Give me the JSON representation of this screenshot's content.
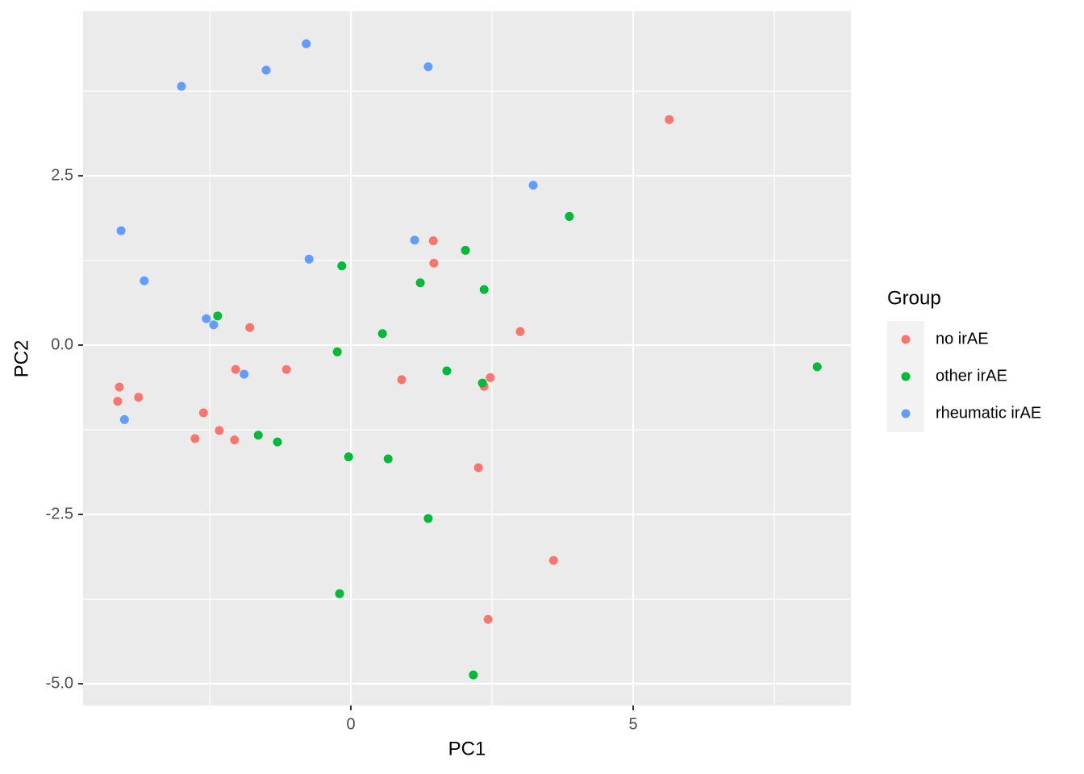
{
  "chart_data": {
    "type": "scatter",
    "x_label": "PC1",
    "y_label": "PC2",
    "legend_title": "Group",
    "legend": "right",
    "xlim": [
      -4.743,
      8.857
    ],
    "ylim": [
      -5.321,
      4.929
    ],
    "xticks": [
      0,
      5
    ],
    "yticks": [
      {
        "value": -5,
        "label": "-5.0"
      },
      {
        "value": -2.5,
        "label": "-2.5"
      },
      {
        "value": 0,
        "label": "0.0"
      },
      {
        "value": 2.5,
        "label": "2.5"
      }
    ],
    "x_minor_ticks": [
      -2.5,
      2.5,
      7.5
    ],
    "y_minor_ticks": [
      -3.75,
      -1.25,
      1.25,
      3.75
    ],
    "grid": true,
    "series": [
      {
        "name": "no irAE",
        "color": "#F8766D",
        "x": [
          5.64,
          1.46,
          1.47,
          3.0,
          -1.79,
          -2.04,
          -1.14,
          0.9,
          2.47,
          2.36,
          -4.1,
          -3.76,
          -4.13,
          -2.61,
          -2.33,
          -2.76,
          -2.06,
          2.26,
          3.59,
          2.43
        ],
        "values": [
          3.33,
          1.54,
          1.21,
          0.2,
          0.26,
          -0.36,
          -0.36,
          -0.51,
          -0.48,
          -0.61,
          -0.62,
          -0.77,
          -0.83,
          -1.0,
          -1.26,
          -1.38,
          -1.4,
          -1.81,
          -3.18,
          -4.05
        ]
      },
      {
        "name": "other irAE",
        "color": "#00BA38",
        "x": [
          3.87,
          2.03,
          -0.16,
          1.23,
          2.36,
          -2.36,
          0.56,
          -0.24,
          1.7,
          2.33,
          8.26,
          -1.64,
          -1.3,
          -0.04,
          0.66,
          1.37,
          -0.2,
          2.17
        ],
        "values": [
          1.9,
          1.4,
          1.17,
          0.92,
          0.82,
          0.43,
          0.17,
          -0.1,
          -0.38,
          -0.56,
          -0.32,
          -1.33,
          -1.43,
          -1.65,
          -1.68,
          -2.56,
          -3.67,
          -4.87
        ]
      },
      {
        "name": "rheumatic irAE",
        "color": "#619CFF",
        "x": [
          -0.79,
          -1.5,
          1.37,
          -3.0,
          3.23,
          -4.07,
          1.13,
          -0.74,
          -3.66,
          -2.56,
          -2.43,
          -1.89,
          -4.01
        ],
        "values": [
          4.45,
          4.06,
          4.11,
          3.82,
          2.36,
          1.69,
          1.55,
          1.27,
          0.95,
          0.39,
          0.3,
          -0.43,
          -1.1
        ]
      }
    ]
  }
}
